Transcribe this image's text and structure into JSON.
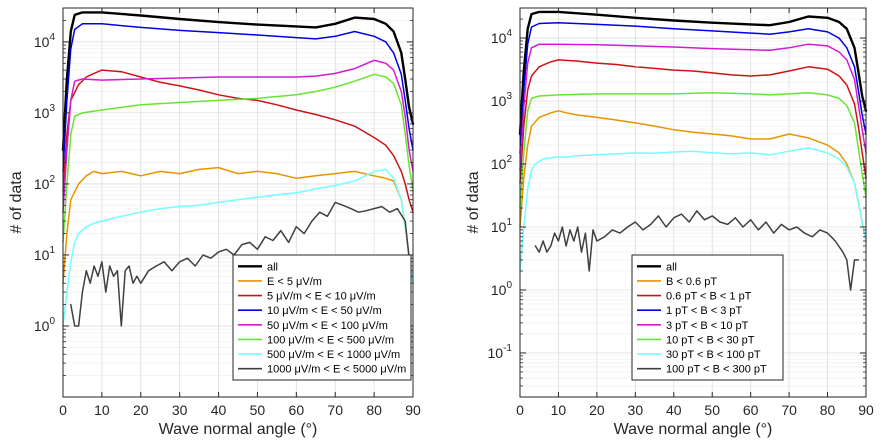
{
  "chart_data": [
    {
      "type": "line",
      "xlabel": "Wave normal angle (°)",
      "ylabel": "# of data",
      "xlim": [
        0,
        90
      ],
      "ylim": [
        0.1,
        30000
      ],
      "yscale": "log",
      "xticks": [
        "0",
        "10",
        "20",
        "30",
        "40",
        "50",
        "60",
        "70",
        "80",
        "90"
      ],
      "yticks": [
        {
          "base": "10",
          "exp": "0",
          "value": 1
        },
        {
          "base": "10",
          "exp": "1",
          "value": 10
        },
        {
          "base": "10",
          "exp": "2",
          "value": 100
        },
        {
          "base": "10",
          "exp": "3",
          "value": 1000
        },
        {
          "base": "10",
          "exp": "4",
          "value": 10000
        }
      ],
      "grid": true,
      "legend_position": "bottom-right",
      "series": [
        {
          "name": "all",
          "color": "#000000",
          "x": [
            0,
            1,
            2,
            3,
            5,
            10,
            20,
            30,
            40,
            50,
            60,
            65,
            70,
            75,
            80,
            83,
            85,
            87,
            88,
            89,
            90
          ],
          "y": [
            300,
            3000,
            14000,
            24000,
            26000,
            26000,
            23500,
            21000,
            19000,
            17500,
            16500,
            16000,
            18000,
            22000,
            21000,
            18000,
            14000,
            7000,
            3000,
            1200,
            700
          ]
        },
        {
          "name": "E < 5 μV/m",
          "color": "#e69500",
          "x": [
            0,
            1,
            2,
            4,
            6,
            8,
            10,
            15,
            20,
            25,
            30,
            35,
            40,
            45,
            50,
            55,
            60,
            65,
            70,
            75,
            80,
            83,
            85,
            87,
            88,
            89,
            90
          ],
          "y": [
            4,
            20,
            60,
            100,
            130,
            150,
            140,
            150,
            130,
            150,
            140,
            160,
            170,
            140,
            150,
            140,
            120,
            130,
            140,
            150,
            130,
            120,
            110,
            60,
            25,
            10,
            4
          ]
        },
        {
          "name": "5 μV/m < E < 10 μV/m",
          "color": "#cc1414",
          "x": [
            0,
            1,
            2,
            4,
            6,
            8,
            10,
            15,
            20,
            25,
            30,
            35,
            40,
            45,
            50,
            55,
            60,
            65,
            70,
            75,
            80,
            83,
            85,
            87,
            88,
            89,
            90
          ],
          "y": [
            80,
            500,
            1500,
            2500,
            3200,
            3600,
            4000,
            3800,
            3200,
            2700,
            2400,
            2100,
            1800,
            1600,
            1500,
            1300,
            1100,
            950,
            800,
            650,
            450,
            350,
            250,
            150,
            100,
            60,
            40
          ]
        },
        {
          "name": "10 μV/m < E < 50 μV/m",
          "color": "#0000e6",
          "x": [
            0,
            1,
            2,
            3,
            5,
            10,
            20,
            30,
            40,
            50,
            60,
            65,
            70,
            75,
            80,
            83,
            85,
            87,
            88,
            89,
            90
          ],
          "y": [
            150,
            1500,
            8000,
            15000,
            18000,
            18000,
            16000,
            14500,
            13500,
            12500,
            11500,
            11000,
            12000,
            14000,
            12000,
            10000,
            7000,
            3500,
            1500,
            600,
            300
          ]
        },
        {
          "name": "50 μV/m < E < 100 μV/m",
          "color": "#d41ad4",
          "x": [
            0,
            1,
            2,
            3,
            5,
            10,
            20,
            30,
            40,
            50,
            60,
            65,
            70,
            75,
            80,
            83,
            85,
            87,
            88,
            89,
            90
          ],
          "y": [
            40,
            300,
            1500,
            2800,
            3000,
            2900,
            3000,
            3100,
            3200,
            3200,
            3200,
            3300,
            3600,
            4200,
            5500,
            5000,
            4000,
            2000,
            900,
            300,
            150
          ]
        },
        {
          "name": "100 μV/m < E < 500 μV/m",
          "color": "#66e633",
          "x": [
            0,
            1,
            2,
            3,
            5,
            10,
            20,
            30,
            40,
            50,
            60,
            65,
            70,
            75,
            80,
            83,
            85,
            87,
            88,
            89,
            90
          ],
          "y": [
            15,
            100,
            500,
            900,
            1000,
            1100,
            1300,
            1400,
            1500,
            1600,
            1800,
            2000,
            2300,
            2800,
            3500,
            3200,
            2600,
            1300,
            500,
            180,
            80
          ]
        },
        {
          "name": "500 μV/m < E < 1000 μV/m",
          "color": "#73ffff",
          "x": [
            0,
            1,
            2,
            3,
            4,
            6,
            8,
            10,
            12,
            15,
            20,
            25,
            30,
            35,
            40,
            45,
            50,
            55,
            60,
            65,
            70,
            75,
            80,
            83,
            85,
            87,
            88,
            89,
            90
          ],
          "y": [
            1,
            3,
            8,
            15,
            20,
            25,
            28,
            30,
            32,
            35,
            40,
            45,
            48,
            50,
            55,
            60,
            65,
            70,
            75,
            85,
            95,
            110,
            150,
            160,
            120,
            60,
            25,
            10,
            4
          ]
        },
        {
          "name": "1000 μV/m < E < 5000 μV/m",
          "color": "#404040",
          "x": [
            2,
            3,
            4,
            5,
            6,
            7,
            8,
            9,
            10,
            11,
            12,
            13,
            14,
            15,
            16,
            17,
            18,
            19,
            20,
            22,
            24,
            26,
            28,
            30,
            32,
            34,
            36,
            38,
            40,
            42,
            44,
            46,
            48,
            50,
            52,
            54,
            56,
            58,
            60,
            62,
            64,
            66,
            68,
            70,
            72,
            74,
            76,
            78,
            80,
            82,
            84,
            86,
            88,
            89
          ],
          "y": [
            2,
            1,
            1,
            3,
            6,
            4,
            7,
            5,
            8,
            3,
            7,
            5,
            6,
            1,
            6,
            7,
            4,
            5,
            4,
            6,
            7,
            8,
            6,
            8,
            9,
            7,
            10,
            9,
            11,
            12,
            10,
            14,
            15,
            12,
            18,
            16,
            22,
            15,
            25,
            20,
            30,
            40,
            35,
            55,
            50,
            45,
            40,
            42,
            45,
            48,
            40,
            45,
            30,
            9
          ]
        }
      ]
    },
    {
      "type": "line",
      "xlabel": "Wave normal angle (°)",
      "ylabel": "# of data",
      "xlim": [
        0,
        90
      ],
      "ylim": [
        0.02,
        30000
      ],
      "yscale": "log",
      "xticks": [
        "0",
        "10",
        "20",
        "30",
        "40",
        "50",
        "60",
        "70",
        "80",
        "90"
      ],
      "yticks": [
        {
          "base": "10",
          "exp": "-1",
          "value": 0.1
        },
        {
          "base": "10",
          "exp": "0",
          "value": 1
        },
        {
          "base": "10",
          "exp": "1",
          "value": 10
        },
        {
          "base": "10",
          "exp": "2",
          "value": 100
        },
        {
          "base": "10",
          "exp": "3",
          "value": 1000
        },
        {
          "base": "10",
          "exp": "4",
          "value": 10000
        }
      ],
      "grid": true,
      "legend_position": "bottom-right",
      "series": [
        {
          "name": "all",
          "color": "#000000",
          "x": [
            0,
            1,
            2,
            3,
            5,
            10,
            20,
            30,
            40,
            50,
            60,
            65,
            70,
            75,
            80,
            83,
            85,
            87,
            88,
            89,
            90
          ],
          "y": [
            300,
            3000,
            14000,
            24000,
            26000,
            26000,
            23500,
            21000,
            19000,
            17500,
            16500,
            16000,
            18000,
            22000,
            21000,
            18000,
            14000,
            7000,
            3000,
            1200,
            700
          ]
        },
        {
          "name": "B < 0.6 pT",
          "color": "#e69500",
          "x": [
            0,
            1,
            2,
            3,
            5,
            8,
            10,
            12,
            15,
            20,
            25,
            30,
            35,
            40,
            45,
            50,
            55,
            60,
            65,
            70,
            75,
            80,
            83,
            85,
            87,
            88,
            89,
            90
          ],
          "y": [
            10,
            60,
            200,
            400,
            550,
            650,
            700,
            650,
            600,
            550,
            500,
            450,
            400,
            350,
            320,
            300,
            280,
            250,
            250,
            300,
            260,
            200,
            150,
            100,
            50,
            25,
            12,
            6
          ]
        },
        {
          "name": "0.6 pT < B < 1 pT",
          "color": "#cc1414",
          "x": [
            0,
            1,
            2,
            3,
            5,
            8,
            10,
            15,
            20,
            25,
            30,
            35,
            40,
            45,
            50,
            55,
            60,
            65,
            70,
            75,
            80,
            83,
            85,
            87,
            88,
            89,
            90
          ],
          "y": [
            50,
            400,
            1500,
            2500,
            3500,
            4200,
            4500,
            4300,
            4000,
            3800,
            3500,
            3300,
            3100,
            3000,
            2800,
            2600,
            2500,
            2600,
            3000,
            3500,
            3200,
            2500,
            1800,
            900,
            400,
            150,
            60
          ]
        },
        {
          "name": "1 pT < B < 3 pT",
          "color": "#0000e6",
          "x": [
            0,
            1,
            2,
            3,
            5,
            10,
            20,
            30,
            40,
            50,
            60,
            65,
            70,
            75,
            80,
            83,
            85,
            87,
            88,
            89,
            90
          ],
          "y": [
            150,
            1500,
            8000,
            15000,
            17000,
            17500,
            16500,
            15500,
            14000,
            13000,
            12000,
            11500,
            12500,
            14000,
            12500,
            10000,
            7000,
            3500,
            1500,
            600,
            300
          ]
        },
        {
          "name": "3 pT < B < 10 pT",
          "color": "#d41ad4",
          "x": [
            0,
            1,
            2,
            3,
            5,
            10,
            20,
            30,
            40,
            50,
            60,
            65,
            70,
            75,
            80,
            83,
            85,
            87,
            88,
            89,
            90
          ],
          "y": [
            80,
            800,
            4000,
            7000,
            8000,
            8000,
            7800,
            7500,
            7200,
            6800,
            6500,
            6400,
            7000,
            8000,
            7500,
            6000,
            4500,
            2200,
            900,
            350,
            150
          ]
        },
        {
          "name": "10 pT < B < 30 pT",
          "color": "#66e633",
          "x": [
            0,
            1,
            2,
            3,
            5,
            10,
            20,
            30,
            40,
            50,
            60,
            65,
            70,
            75,
            80,
            83,
            85,
            87,
            88,
            89,
            90
          ],
          "y": [
            20,
            150,
            700,
            1100,
            1200,
            1250,
            1300,
            1300,
            1300,
            1350,
            1300,
            1250,
            1300,
            1350,
            1250,
            1100,
            850,
            450,
            180,
            70,
            30
          ]
        },
        {
          "name": "30 pT < B < 100 pT",
          "color": "#73ffff",
          "x": [
            0,
            1,
            2,
            3,
            4,
            6,
            8,
            10,
            12,
            15,
            20,
            25,
            30,
            35,
            40,
            45,
            50,
            55,
            60,
            65,
            70,
            75,
            80,
            83,
            85,
            87,
            88,
            89,
            90
          ],
          "y": [
            2,
            10,
            40,
            80,
            100,
            120,
            125,
            130,
            128,
            135,
            140,
            145,
            150,
            148,
            155,
            160,
            150,
            145,
            150,
            140,
            160,
            180,
            150,
            120,
            90,
            50,
            25,
            12,
            6
          ]
        },
        {
          "name": "100 pT < B < 300 pT",
          "color": "#404040",
          "x": [
            4,
            5,
            6,
            7,
            8,
            9,
            10,
            11,
            12,
            13,
            14,
            15,
            16,
            17,
            18,
            19,
            20,
            22,
            24,
            26,
            28,
            30,
            32,
            34,
            36,
            38,
            40,
            42,
            44,
            46,
            48,
            50,
            52,
            54,
            56,
            58,
            60,
            62,
            64,
            66,
            68,
            70,
            72,
            74,
            76,
            78,
            80,
            82,
            84,
            85,
            86,
            87,
            88
          ],
          "y": [
            5,
            4,
            6,
            4,
            5,
            8,
            6,
            10,
            5,
            9,
            6,
            10,
            4,
            8,
            2,
            9,
            6,
            7,
            9,
            8,
            10,
            12,
            9,
            11,
            15,
            10,
            14,
            16,
            12,
            18,
            13,
            15,
            12,
            11,
            14,
            10,
            13,
            9,
            12,
            8,
            11,
            9,
            10,
            8,
            7,
            9,
            8,
            6,
            4,
            3,
            1,
            3,
            3
          ]
        }
      ]
    }
  ]
}
